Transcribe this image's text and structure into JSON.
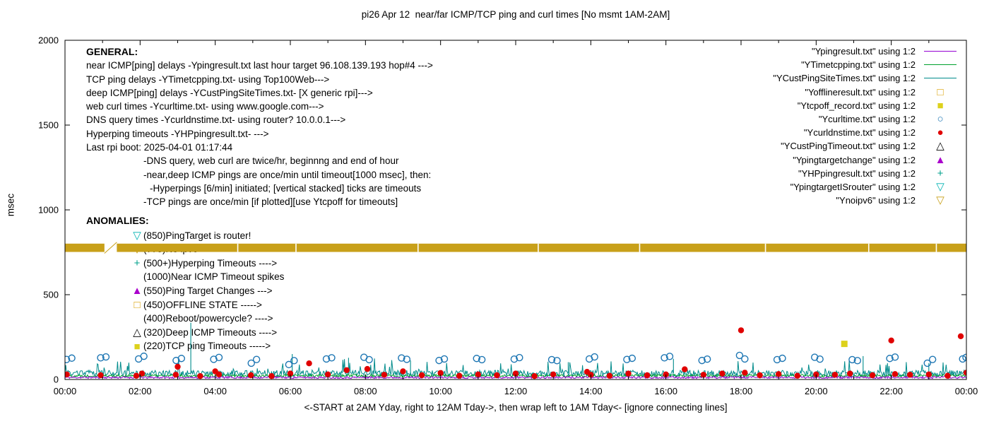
{
  "title": "pi26 Apr 12  near/far ICMP/TCP ping and curl times [No msmt 1AM-2AM]",
  "axes": {
    "ylabel": "msec",
    "xlabel": "<-START at 2AM Yday, right to 12AM Tday->, then wrap left to 1AM Tday<- [ignore connecting lines]",
    "y_ticks": [
      0,
      500,
      1000,
      1500,
      2000
    ],
    "x_ticks": [
      "00:00",
      "02:00",
      "04:00",
      "06:00",
      "08:00",
      "10:00",
      "12:00",
      "14:00",
      "16:00",
      "18:00",
      "20:00",
      "22:00",
      "00:00"
    ]
  },
  "legend": [
    {
      "label": "\"Ypingresult.txt\" using 1:2",
      "sample": "line",
      "color": "#9400d3"
    },
    {
      "label": "\"YTimetcpping.txt\" using 1:2",
      "sample": "line",
      "color": "#00a02c"
    },
    {
      "label": "\"YCustPingSiteTimes.txt\" using 1:2",
      "sample": "line",
      "color": "#008b8b"
    },
    {
      "label": "\"Yofflineresult.txt\" using 1:2",
      "sample": "glyph",
      "glyph": "□",
      "color": "#d9a000"
    },
    {
      "label": "\"Ytcpoff_record.txt\" using 1:2",
      "sample": "glyph",
      "glyph": "■",
      "color": "#ddd11c"
    },
    {
      "label": "\"Ycurltime.txt\" using 1:2",
      "sample": "glyph",
      "glyph": "○",
      "color": "#1f77b4"
    },
    {
      "label": "\"Ycurldnstime.txt\" using 1:2",
      "sample": "glyph",
      "glyph": "●",
      "color": "#e00000"
    },
    {
      "label": "\"YCustPingTimeout.txt\" using 1:2",
      "sample": "glyph",
      "glyph": "△",
      "color": "#000000"
    },
    {
      "label": "\"Ypingtargetchange\" using 1:2",
      "sample": "glyph",
      "glyph": "▲",
      "color": "#aa00cc"
    },
    {
      "label": "\"YHPpingresult.txt\" using 1:2",
      "sample": "glyph",
      "glyph": "+",
      "color": "#00a08c"
    },
    {
      "label": "\"YpingtargetISrouter\" using 1:2",
      "sample": "glyph",
      "glyph": "▽",
      "color": "#00b2b2"
    },
    {
      "label": "\"Ynoipv6\" using 1:2",
      "sample": "glyph",
      "glyph": "▽",
      "color": "#c8a019"
    }
  ],
  "general": {
    "heading": "GENERAL:",
    "lines": [
      {
        "text": "near ICMP[ping] delays -Ypingresult.txt last hour target 96.108.139.193 hop#4 --->",
        "indent": 0
      },
      {
        "text": "TCP ping delays -YTimetcpping.txt- using Top100Web--->",
        "indent": 0
      },
      {
        "text": "deep ICMP[ping] delays -YCustPingSiteTimes.txt- [X generic rpi]--->",
        "indent": 0
      },
      {
        "text": "web curl times -Ycurltime.txt- using www.google.com--->",
        "indent": 0
      },
      {
        "text": "DNS query times -Ycurldnstime.txt- using router? 10.0.0.1--->",
        "indent": 0
      },
      {
        "text": "Hyperping timeouts -YHPpingresult.txt- --->",
        "indent": 0
      },
      {
        "text": "Last rpi boot: 2025-04-01 01:17:44",
        "indent": 0
      },
      {
        "text": "-DNS query, web curl are twice/hr, beginnng and end of hour",
        "indent": 1
      },
      {
        "text": "-near,deep ICMP pings are once/min until timeout[1000 msec], then:",
        "indent": 1
      },
      {
        "text": "-Hyperpings [6/min] initiated; [vertical stacked] ticks are timeouts",
        "indent": 2
      },
      {
        "text": "-TCP pings are once/min [if plotted][use Ytcpoff for timeouts]",
        "indent": 1
      }
    ]
  },
  "anomalies": {
    "heading": "ANOMALIES:",
    "items": [
      {
        "marker": "▽",
        "color": "#00b2b2",
        "text": "(850)PingTarget is router!"
      },
      {
        "marker": "▽",
        "color": "#c8a019",
        "text": "(775)No ipv6 ----->"
      },
      {
        "marker": "+",
        "color": "#00a08c",
        "text": "(500+)Hyperping Timeouts ---->"
      },
      {
        "marker": "",
        "color": "",
        "text": "(1000)Near ICMP Timeout spikes"
      },
      {
        "marker": "▲",
        "color": "#aa00cc",
        "text": "(550)Ping Target Changes --->"
      },
      {
        "marker": "□",
        "color": "#d9a000",
        "text": "(450)OFFLINE STATE ----->"
      },
      {
        "marker": "",
        "color": "",
        "text": "(400)Reboot/powercycle? ---->"
      },
      {
        "marker": "△",
        "color": "#000000",
        "text": "(320)Deep ICMP Timeouts ---->"
      },
      {
        "marker": "■",
        "color": "#ddd11c",
        "text": "(220)TCP ping Timeouts ----->"
      }
    ]
  },
  "chart_data": {
    "type": "line",
    "x_unit": "hours 00:00-24:00",
    "x_range": [
      0,
      24
    ],
    "y_range": [
      0,
      2000
    ],
    "grid": false,
    "legend_position": "top-right",
    "series": [
      {
        "name": "Ypingresult.txt",
        "style": "line",
        "color": "#9400d3",
        "baseline": 12,
        "noise": 6,
        "seed": 11
      },
      {
        "name": "YTimetcpping.txt",
        "style": "line",
        "color": "#00a02c",
        "baseline": 22,
        "noise": 8,
        "seed": 22
      },
      {
        "name": "YCustPingSiteTimes.txt",
        "style": "line",
        "color": "#008b8b",
        "baseline": 36,
        "noise": 18,
        "seed": 33,
        "burst_p": 0.05,
        "burst_min": 20,
        "burst_var": 55,
        "spikes": [
          [
            3.35,
            335
          ],
          [
            6.05,
            150
          ],
          [
            7.55,
            128
          ],
          [
            9.2,
            112
          ],
          [
            13.4,
            102
          ],
          [
            16.2,
            122
          ],
          [
            21.25,
            138
          ],
          [
            23.0,
            96
          ]
        ]
      },
      {
        "name": "Yofflineresult.txt",
        "style": "open-square",
        "color": "#d9a000",
        "points": []
      },
      {
        "name": "Ytcpoff_record.txt",
        "style": "filled-square",
        "color": "#ddd11c",
        "points": [
          [
            20.75,
            210
          ]
        ]
      },
      {
        "name": "Ycurltime.txt",
        "style": "open-circle",
        "color": "#1f77b4",
        "points": [
          [
            0.04,
            118
          ],
          [
            0.18,
            126
          ],
          [
            0.95,
            128
          ],
          [
            1.09,
            133
          ],
          [
            1.96,
            121
          ],
          [
            2.1,
            137
          ],
          [
            2.96,
            112
          ],
          [
            3.1,
            124
          ],
          [
            3.96,
            119
          ],
          [
            4.1,
            130
          ],
          [
            4.96,
            96
          ],
          [
            5.1,
            118
          ],
          [
            5.96,
            88
          ],
          [
            6.1,
            111
          ],
          [
            6.96,
            121
          ],
          [
            7.1,
            128
          ],
          [
            7.96,
            131
          ],
          [
            8.1,
            117
          ],
          [
            8.96,
            127
          ],
          [
            9.1,
            119
          ],
          [
            9.96,
            112
          ],
          [
            10.1,
            121
          ],
          [
            10.96,
            124
          ],
          [
            11.1,
            117
          ],
          [
            11.96,
            120
          ],
          [
            12.1,
            129
          ],
          [
            12.96,
            117
          ],
          [
            13.1,
            111
          ],
          [
            13.96,
            121
          ],
          [
            14.1,
            133
          ],
          [
            14.96,
            118
          ],
          [
            15.1,
            125
          ],
          [
            15.96,
            128
          ],
          [
            16.1,
            136
          ],
          [
            16.96,
            112
          ],
          [
            17.1,
            120
          ],
          [
            17.96,
            142
          ],
          [
            18.1,
            121
          ],
          [
            18.96,
            117
          ],
          [
            19.1,
            125
          ],
          [
            19.96,
            131
          ],
          [
            20.1,
            120
          ],
          [
            20.96,
            117
          ],
          [
            21.1,
            111
          ],
          [
            21.96,
            124
          ],
          [
            22.1,
            132
          ],
          [
            22.96,
            96
          ],
          [
            23.1,
            118
          ],
          [
            23.9,
            121
          ],
          [
            23.99,
            130
          ]
        ]
      },
      {
        "name": "Ycurldnstime.txt",
        "style": "filled-circle",
        "color": "#e00000",
        "points": [
          [
            0.05,
            30
          ],
          [
            0.95,
            25
          ],
          [
            1.9,
            22
          ],
          [
            2.05,
            35
          ],
          [
            2.95,
            28
          ],
          [
            3.0,
            75
          ],
          [
            3.6,
            20
          ],
          [
            4.0,
            48
          ],
          [
            4.1,
            30
          ],
          [
            4.95,
            25
          ],
          [
            5.5,
            20
          ],
          [
            6.0,
            35
          ],
          [
            6.5,
            95
          ],
          [
            7.0,
            30
          ],
          [
            7.5,
            55
          ],
          [
            8.05,
            62
          ],
          [
            8.5,
            28
          ],
          [
            9.0,
            48
          ],
          [
            9.5,
            25
          ],
          [
            10.0,
            38
          ],
          [
            10.5,
            22
          ],
          [
            11.0,
            30
          ],
          [
            11.5,
            25
          ],
          [
            12.0,
            35
          ],
          [
            12.5,
            20
          ],
          [
            13.0,
            30
          ],
          [
            13.9,
            45
          ],
          [
            14.0,
            28
          ],
          [
            14.5,
            22
          ],
          [
            15.0,
            35
          ],
          [
            15.5,
            25
          ],
          [
            16.0,
            30
          ],
          [
            16.5,
            60
          ],
          [
            17.0,
            28
          ],
          [
            17.5,
            35
          ],
          [
            18.0,
            290
          ],
          [
            18.1,
            40
          ],
          [
            18.5,
            25
          ],
          [
            19.0,
            32
          ],
          [
            19.5,
            22
          ],
          [
            20.0,
            30
          ],
          [
            20.5,
            28
          ],
          [
            20.9,
            35
          ],
          [
            21.5,
            25
          ],
          [
            22.0,
            230
          ],
          [
            22.1,
            32
          ],
          [
            22.5,
            28
          ],
          [
            23.0,
            30
          ],
          [
            23.5,
            22
          ],
          [
            23.85,
            255
          ],
          [
            24.0,
            40
          ]
        ]
      },
      {
        "name": "YCustPingTimeout.txt",
        "style": "open-triangle-up",
        "color": "#000000",
        "points": []
      },
      {
        "name": "Ypingtargetchange",
        "style": "filled-triangle-up",
        "color": "#aa00cc",
        "points": []
      },
      {
        "name": "YHPpingresult.txt",
        "style": "plus",
        "color": "#00a08c",
        "points": []
      },
      {
        "name": "YpingtargetISrouter",
        "style": "open-triangle-down",
        "color": "#00b2b2",
        "points": []
      },
      {
        "name": "Ynoipv6",
        "style": "band",
        "color": "#c8a019",
        "band_y": [
          752,
          801
        ],
        "gaps": [
          [
            1.05,
            1.38
          ]
        ],
        "notches": [
          4.6,
          6.15,
          9.4,
          12.6,
          15.3,
          18.65,
          21.4,
          23.2
        ],
        "slash": true
      }
    ]
  }
}
